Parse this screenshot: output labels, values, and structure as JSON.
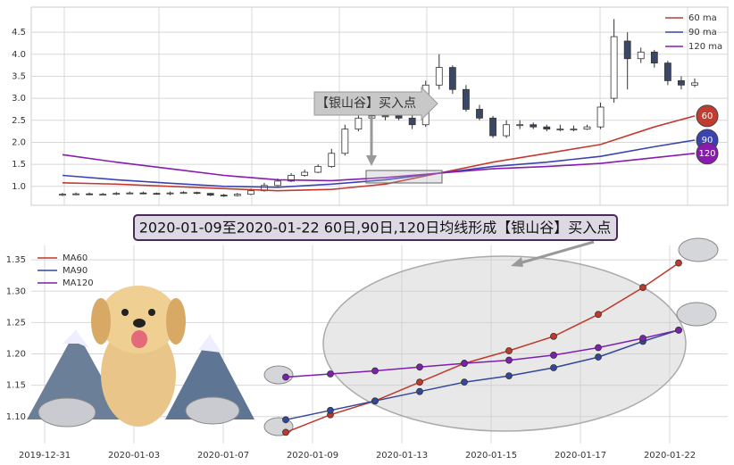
{
  "chart_data": [
    {
      "type": "candlestick",
      "open": [
        0.8,
        0.82,
        0.83,
        0.82,
        0.82,
        0.84,
        0.85,
        0.84,
        0.83,
        0.85,
        0.86,
        0.84,
        0.8,
        0.79,
        0.82,
        0.9,
        1.02,
        1.12,
        1.25,
        1.32,
        1.45,
        1.75,
        2.3,
        2.55,
        2.6,
        2.6,
        2.55,
        2.4,
        3.3,
        3.7,
        3.2,
        2.75,
        2.55,
        2.15,
        2.4,
        2.4,
        2.35,
        2.3,
        2.3,
        2.3,
        2.35,
        3.0,
        4.3,
        3.9,
        4.05,
        3.8,
        3.4,
        3.3
      ],
      "high": [
        0.85,
        0.86,
        0.86,
        0.85,
        0.87,
        0.88,
        0.88,
        0.86,
        0.88,
        0.89,
        0.88,
        0.85,
        0.83,
        0.85,
        0.95,
        1.08,
        1.18,
        1.3,
        1.38,
        1.5,
        1.85,
        2.4,
        2.7,
        2.7,
        2.7,
        2.7,
        2.65,
        3.4,
        4.0,
        3.75,
        3.3,
        2.85,
        2.6,
        2.5,
        2.5,
        2.45,
        2.4,
        2.4,
        2.38,
        2.4,
        2.9,
        4.8,
        4.5,
        4.15,
        4.1,
        3.85,
        3.5,
        3.45
      ],
      "low": [
        0.78,
        0.8,
        0.8,
        0.8,
        0.8,
        0.82,
        0.82,
        0.81,
        0.8,
        0.83,
        0.82,
        0.78,
        0.76,
        0.77,
        0.8,
        0.88,
        1.0,
        1.1,
        1.22,
        1.3,
        1.42,
        1.7,
        2.25,
        2.5,
        2.5,
        2.5,
        2.3,
        2.35,
        3.2,
        3.1,
        2.7,
        2.5,
        2.1,
        2.1,
        2.3,
        2.3,
        2.25,
        2.25,
        2.25,
        2.28,
        2.3,
        2.9,
        3.2,
        3.8,
        3.7,
        3.3,
        3.2,
        3.25
      ],
      "close": [
        0.82,
        0.83,
        0.82,
        0.82,
        0.84,
        0.85,
        0.84,
        0.83,
        0.85,
        0.86,
        0.84,
        0.8,
        0.79,
        0.82,
        0.9,
        1.02,
        1.12,
        1.25,
        1.32,
        1.45,
        1.75,
        2.3,
        2.55,
        2.6,
        2.6,
        2.55,
        2.4,
        3.3,
        3.7,
        3.2,
        2.75,
        2.55,
        2.15,
        2.4,
        2.4,
        2.35,
        2.3,
        2.3,
        2.3,
        2.35,
        2.8,
        4.4,
        3.9,
        4.05,
        3.8,
        3.4,
        3.3,
        3.35
      ],
      "up_color": "#ffffff",
      "down_color": "#3b4766",
      "ylim": [
        0.57,
        5.07
      ],
      "yticks": [
        {
          "value": 1,
          "label": "1.0"
        },
        1.5,
        {
          "value": 2,
          "label": "2.0"
        },
        2.5,
        {
          "value": 3,
          "label": "3.0"
        },
        3.5,
        {
          "value": 4,
          "label": "4.0"
        },
        4.5
      ],
      "grid": true,
      "legend": "upper right",
      "annotation": "【银山谷】买入点",
      "series": [
        {
          "name": "60 ma",
          "end_label": "60",
          "color": "#c23b30",
          "x": [
            0,
            4,
            8,
            12,
            16,
            20,
            24,
            28,
            32,
            36,
            40,
            44,
            47
          ],
          "values": [
            1.08,
            1.05,
            1.0,
            0.95,
            0.9,
            0.93,
            1.05,
            1.3,
            1.55,
            1.75,
            1.95,
            2.35,
            2.6
          ]
        },
        {
          "name": "90 ma",
          "end_label": "90",
          "color": "#3a44b0",
          "x": [
            0,
            4,
            8,
            12,
            16,
            20,
            24,
            28,
            32,
            36,
            40,
            44,
            47
          ],
          "values": [
            1.25,
            1.15,
            1.07,
            1.0,
            0.98,
            1.05,
            1.15,
            1.3,
            1.45,
            1.55,
            1.68,
            1.9,
            2.05
          ]
        },
        {
          "name": "120 ma",
          "end_label": "120",
          "color": "#8a1ab0",
          "x": [
            0,
            4,
            8,
            12,
            16,
            20,
            24,
            28,
            32,
            36,
            40,
            44,
            47
          ],
          "values": [
            1.72,
            1.55,
            1.4,
            1.25,
            1.15,
            1.13,
            1.2,
            1.3,
            1.4,
            1.45,
            1.52,
            1.65,
            1.75
          ]
        }
      ]
    },
    {
      "type": "line",
      "title": "2020-01-09至2020-01-22 60日,90日,120日均线形成【银山谷】买入点",
      "xlim": [
        -0.3,
        15.3
      ],
      "xticks": [
        {
          "value": 0,
          "label": "2019-12-31"
        },
        {
          "value": 2,
          "label": "2020-01-03"
        },
        {
          "value": 4,
          "label": "2020-01-07"
        },
        {
          "value": 6,
          "label": "2020-01-09"
        },
        {
          "value": 8,
          "label": "2020-01-13"
        },
        {
          "value": 10,
          "label": "2020-01-15"
        },
        {
          "value": 12,
          "label": "2020-01-17"
        },
        {
          "value": 14,
          "label": "2020-01-22"
        }
      ],
      "ylim": [
        1.057,
        1.373
      ],
      "yticks": [
        {
          "value": 1.1,
          "label": "1.10"
        },
        1.15,
        {
          "value": 1.2,
          "label": "1.20"
        },
        1.25,
        {
          "value": 1.3,
          "label": "1.30"
        },
        1.35
      ],
      "grid": true,
      "legend": "upper left",
      "series": [
        {
          "name": "MA60",
          "color": "#c0392b",
          "x": [
            5.4,
            6.4,
            7.4,
            8.4,
            9.4,
            10.4,
            11.4,
            12.4,
            13.4,
            14.2
          ],
          "values": [
            1.075,
            1.103,
            1.125,
            1.155,
            1.185,
            1.205,
            1.228,
            1.263,
            1.306,
            1.345
          ]
        },
        {
          "name": "MA90",
          "color": "#34489a",
          "x": [
            5.4,
            6.4,
            7.4,
            8.4,
            9.4,
            10.4,
            11.4,
            12.4,
            13.4,
            14.2
          ],
          "values": [
            1.095,
            1.11,
            1.125,
            1.14,
            1.155,
            1.165,
            1.178,
            1.195,
            1.22,
            1.238
          ]
        },
        {
          "name": "MA120",
          "color": "#7d1fb0",
          "x": [
            5.4,
            6.4,
            7.4,
            8.4,
            9.4,
            10.4,
            11.4,
            12.4,
            13.4,
            14.2
          ],
          "values": [
            1.163,
            1.168,
            1.173,
            1.179,
            1.185,
            1.19,
            1.198,
            1.21,
            1.225,
            1.238
          ]
        }
      ]
    }
  ]
}
